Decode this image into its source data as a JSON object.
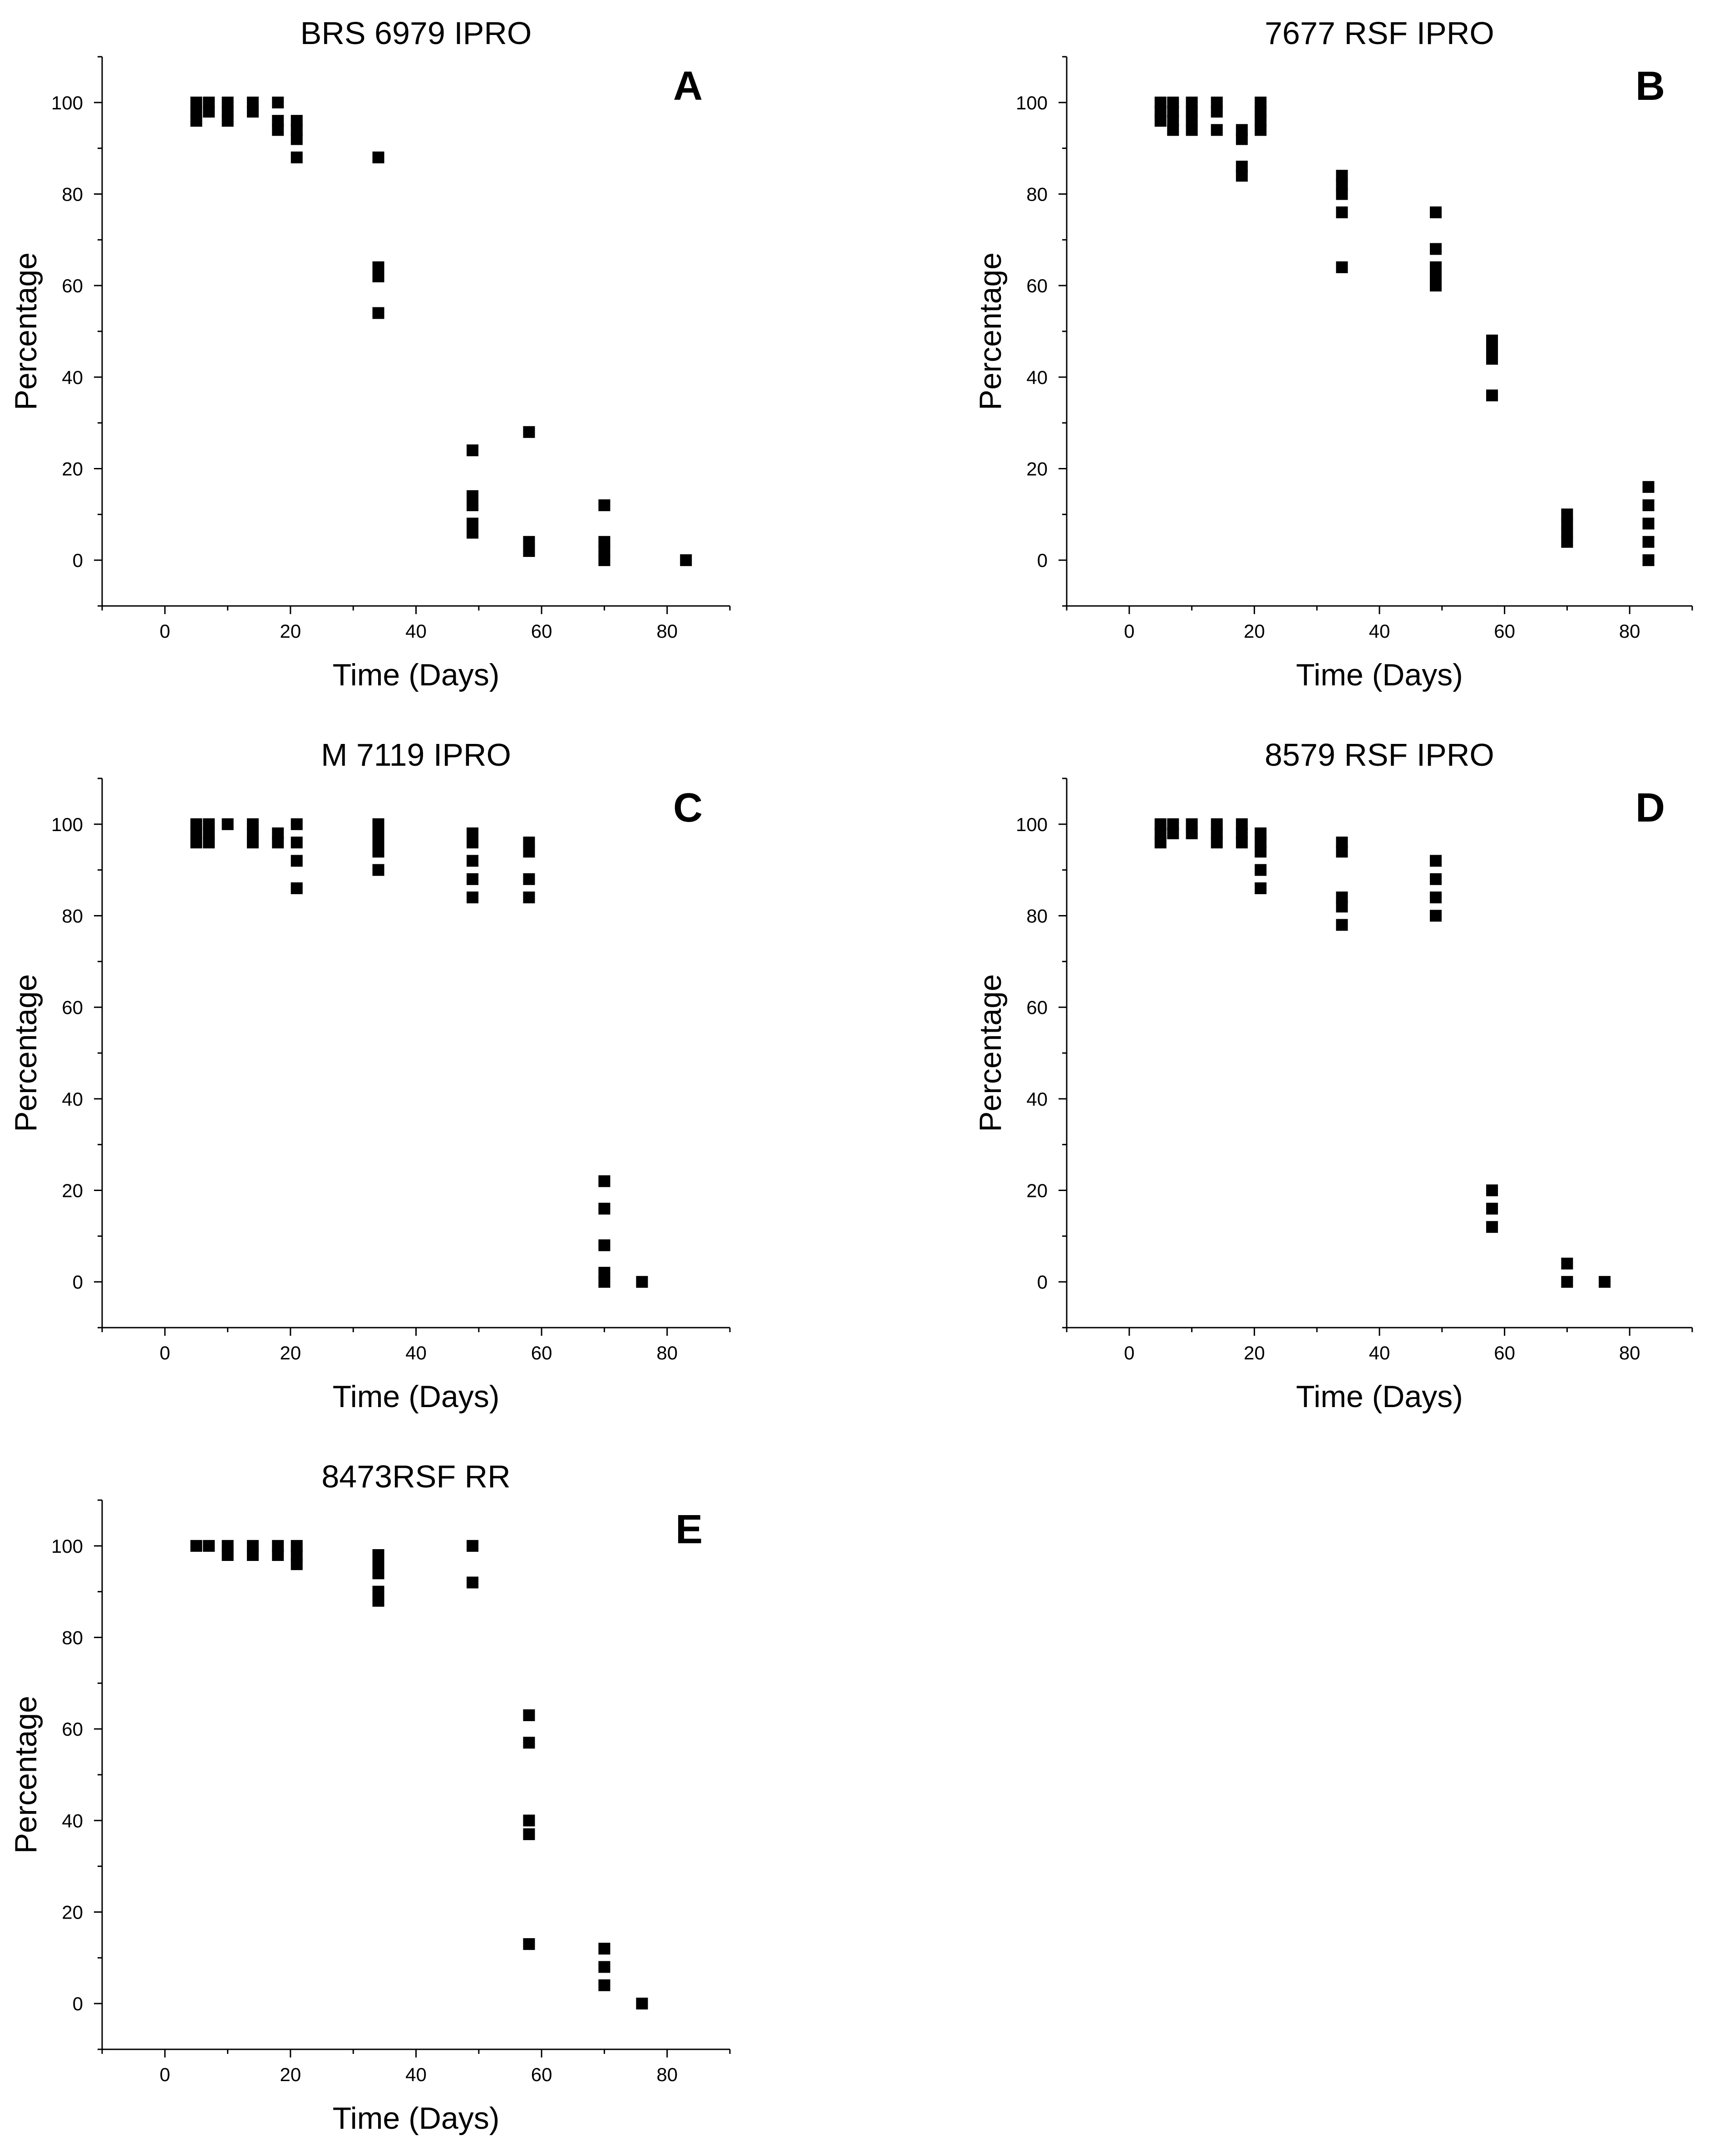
{
  "figure": {
    "x_ticks": [
      "0",
      "20",
      "40",
      "60",
      "80"
    ],
    "y_ticks": [
      "0",
      "20",
      "40",
      "60",
      "80",
      "100"
    ]
  },
  "chart_data": [
    {
      "type": "scatter",
      "panel": "A",
      "title": "BRS 6979 IPRO",
      "xlabel": "Time (Days)",
      "ylabel": "Percentage",
      "xlim": [
        -10,
        90
      ],
      "ylim": [
        -10,
        110
      ],
      "marker": "square",
      "points": [
        [
          5,
          100
        ],
        [
          5,
          98
        ],
        [
          5,
          96
        ],
        [
          7,
          100
        ],
        [
          7,
          98
        ],
        [
          10,
          100
        ],
        [
          10,
          98
        ],
        [
          10,
          96
        ],
        [
          14,
          100
        ],
        [
          14,
          98
        ],
        [
          18,
          100
        ],
        [
          18,
          96
        ],
        [
          18,
          94
        ],
        [
          21,
          96
        ],
        [
          21,
          94
        ],
        [
          21,
          92
        ],
        [
          21,
          88
        ],
        [
          34,
          88
        ],
        [
          34,
          64
        ],
        [
          34,
          62
        ],
        [
          34,
          54
        ],
        [
          49,
          24
        ],
        [
          49,
          14
        ],
        [
          49,
          12
        ],
        [
          49,
          8
        ],
        [
          49,
          6
        ],
        [
          58,
          28
        ],
        [
          58,
          4
        ],
        [
          58,
          2
        ],
        [
          70,
          12
        ],
        [
          70,
          4
        ],
        [
          70,
          2
        ],
        [
          70,
          0
        ],
        [
          83,
          0
        ]
      ]
    },
    {
      "type": "scatter",
      "panel": "B",
      "title": "7677 RSF IPRO",
      "xlabel": "Time (Days)",
      "ylabel": "Percentage",
      "xlim": [
        -10,
        90
      ],
      "ylim": [
        -10,
        110
      ],
      "marker": "square",
      "points": [
        [
          5,
          100
        ],
        [
          5,
          98
        ],
        [
          5,
          96
        ],
        [
          7,
          100
        ],
        [
          7,
          98
        ],
        [
          7,
          96
        ],
        [
          7,
          94
        ],
        [
          10,
          100
        ],
        [
          10,
          98
        ],
        [
          10,
          96
        ],
        [
          10,
          94
        ],
        [
          14,
          100
        ],
        [
          14,
          98
        ],
        [
          14,
          94
        ],
        [
          18,
          94
        ],
        [
          18,
          92
        ],
        [
          18,
          86
        ],
        [
          18,
          84
        ],
        [
          21,
          100
        ],
        [
          21,
          98
        ],
        [
          21,
          96
        ],
        [
          21,
          94
        ],
        [
          34,
          84
        ],
        [
          34,
          82
        ],
        [
          34,
          80
        ],
        [
          34,
          76
        ],
        [
          34,
          64
        ],
        [
          49,
          76
        ],
        [
          49,
          68
        ],
        [
          49,
          64
        ],
        [
          49,
          62
        ],
        [
          49,
          60
        ],
        [
          58,
          48
        ],
        [
          58,
          46
        ],
        [
          58,
          44
        ],
        [
          58,
          36
        ],
        [
          70,
          10
        ],
        [
          70,
          8
        ],
        [
          70,
          6
        ],
        [
          70,
          4
        ],
        [
          83,
          16
        ],
        [
          83,
          12
        ],
        [
          83,
          8
        ],
        [
          83,
          4
        ],
        [
          83,
          0
        ]
      ]
    },
    {
      "type": "scatter",
      "panel": "C",
      "title": "M 7119 IPRO",
      "xlabel": "Time (Days)",
      "ylabel": "Percentage",
      "xlim": [
        -10,
        90
      ],
      "ylim": [
        -10,
        110
      ],
      "marker": "square",
      "points": [
        [
          5,
          100
        ],
        [
          5,
          98
        ],
        [
          5,
          96
        ],
        [
          7,
          100
        ],
        [
          7,
          98
        ],
        [
          7,
          96
        ],
        [
          10,
          100
        ],
        [
          14,
          100
        ],
        [
          14,
          98
        ],
        [
          14,
          96
        ],
        [
          18,
          98
        ],
        [
          18,
          96
        ],
        [
          21,
          100
        ],
        [
          21,
          96
        ],
        [
          21,
          92
        ],
        [
          21,
          86
        ],
        [
          34,
          100
        ],
        [
          34,
          98
        ],
        [
          34,
          96
        ],
        [
          34,
          94
        ],
        [
          34,
          90
        ],
        [
          49,
          98
        ],
        [
          49,
          96
        ],
        [
          49,
          92
        ],
        [
          49,
          88
        ],
        [
          49,
          84
        ],
        [
          58,
          96
        ],
        [
          58,
          94
        ],
        [
          58,
          88
        ],
        [
          58,
          84
        ],
        [
          70,
          22
        ],
        [
          70,
          16
        ],
        [
          70,
          8
        ],
        [
          70,
          2
        ],
        [
          70,
          0
        ],
        [
          76,
          0
        ]
      ]
    },
    {
      "type": "scatter",
      "panel": "D",
      "title": "8579 RSF IPRO",
      "xlabel": "Time (Days)",
      "ylabel": "Percentage",
      "xlim": [
        -10,
        90
      ],
      "ylim": [
        -10,
        110
      ],
      "marker": "square",
      "points": [
        [
          5,
          100
        ],
        [
          5,
          98
        ],
        [
          5,
          96
        ],
        [
          7,
          100
        ],
        [
          7,
          98
        ],
        [
          10,
          100
        ],
        [
          10,
          98
        ],
        [
          14,
          100
        ],
        [
          14,
          98
        ],
        [
          14,
          96
        ],
        [
          18,
          100
        ],
        [
          18,
          98
        ],
        [
          18,
          96
        ],
        [
          21,
          98
        ],
        [
          21,
          96
        ],
        [
          21,
          94
        ],
        [
          21,
          90
        ],
        [
          21,
          86
        ],
        [
          34,
          96
        ],
        [
          34,
          94
        ],
        [
          34,
          84
        ],
        [
          34,
          82
        ],
        [
          34,
          78
        ],
        [
          49,
          92
        ],
        [
          49,
          88
        ],
        [
          49,
          84
        ],
        [
          49,
          80
        ],
        [
          58,
          20
        ],
        [
          58,
          16
        ],
        [
          58,
          12
        ],
        [
          70,
          4
        ],
        [
          70,
          0
        ],
        [
          76,
          0
        ]
      ]
    },
    {
      "type": "scatter",
      "panel": "E",
      "title": "8473RSF RR",
      "xlabel": "Time (Days)",
      "ylabel": "Percentage",
      "xlim": [
        -10,
        90
      ],
      "ylim": [
        -10,
        110
      ],
      "marker": "square",
      "points": [
        [
          5,
          100
        ],
        [
          7,
          100
        ],
        [
          10,
          100
        ],
        [
          10,
          98
        ],
        [
          14,
          100
        ],
        [
          14,
          98
        ],
        [
          18,
          100
        ],
        [
          18,
          98
        ],
        [
          21,
          100
        ],
        [
          21,
          98
        ],
        [
          21,
          96
        ],
        [
          34,
          98
        ],
        [
          34,
          96
        ],
        [
          34,
          94
        ],
        [
          34,
          90
        ],
        [
          34,
          88
        ],
        [
          49,
          100
        ],
        [
          49,
          92
        ],
        [
          58,
          63
        ],
        [
          58,
          57
        ],
        [
          58,
          40
        ],
        [
          58,
          37
        ],
        [
          58,
          13
        ],
        [
          70,
          12
        ],
        [
          70,
          8
        ],
        [
          70,
          4
        ],
        [
          76,
          0
        ]
      ]
    }
  ]
}
